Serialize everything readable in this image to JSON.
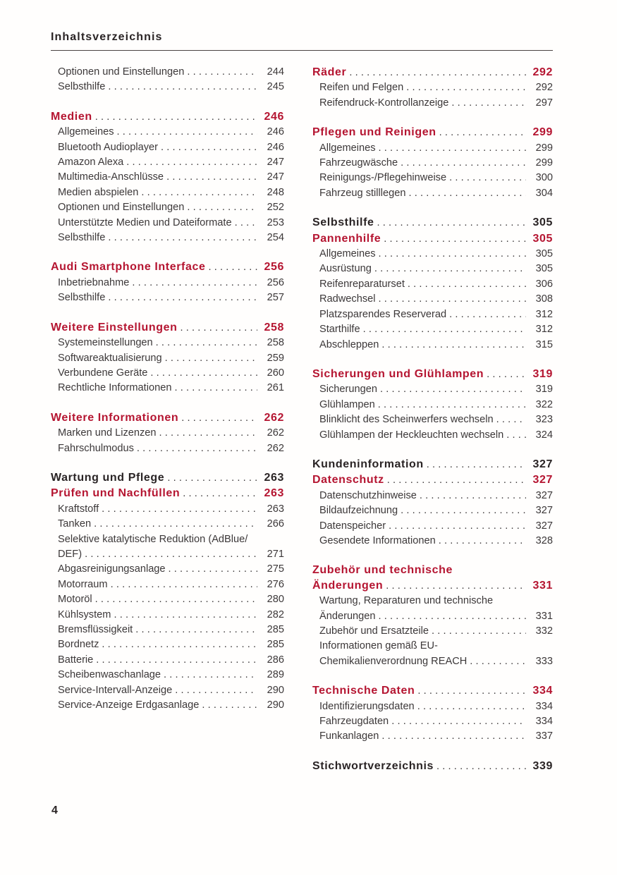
{
  "page": {
    "header_title": "Inhaltsverzeichnis",
    "page_number": "4"
  },
  "colors": {
    "accent_red": "#b51531",
    "heading_black": "#2a2425",
    "body_text": "#3c3839"
  },
  "toc": {
    "left_column": [
      {
        "rows": [
          {
            "style": "entry",
            "label": "Optionen und Einstellungen",
            "page": "244"
          },
          {
            "style": "entry",
            "label": "Selbsthilfe",
            "page": "245"
          }
        ]
      },
      {
        "rows": [
          {
            "style": "heading-red",
            "label": "Medien",
            "page": "246"
          },
          {
            "style": "entry",
            "label": "Allgemeines",
            "page": "246"
          },
          {
            "style": "entry",
            "label": "Bluetooth Audioplayer",
            "page": "246"
          },
          {
            "style": "entry",
            "label": "Amazon Alexa",
            "page": "247"
          },
          {
            "style": "entry",
            "label": "Multimedia-Anschlüsse",
            "page": "247"
          },
          {
            "style": "entry",
            "label": "Medien abspielen",
            "page": "248"
          },
          {
            "style": "entry",
            "label": "Optionen und Einstellungen",
            "page": "252"
          },
          {
            "style": "entry",
            "label": "Unterstützte Medien und Dateiformate",
            "page": "253"
          },
          {
            "style": "entry",
            "label": "Selbsthilfe",
            "page": "254"
          }
        ]
      },
      {
        "rows": [
          {
            "style": "heading-red",
            "label": "Audi Smartphone Interface",
            "page": "256"
          },
          {
            "style": "entry",
            "label": "Inbetriebnahme",
            "page": "256"
          },
          {
            "style": "entry",
            "label": "Selbsthilfe",
            "page": "257"
          }
        ]
      },
      {
        "rows": [
          {
            "style": "heading-red",
            "label": "Weitere Einstellungen",
            "page": "258"
          },
          {
            "style": "entry",
            "label": "Systemeinstellungen",
            "page": "258"
          },
          {
            "style": "entry",
            "label": "Softwareaktualisierung",
            "page": "259"
          },
          {
            "style": "entry",
            "label": "Verbundene Geräte",
            "page": "260"
          },
          {
            "style": "entry",
            "label": "Rechtliche Informationen",
            "page": "261"
          }
        ]
      },
      {
        "rows": [
          {
            "style": "heading-red",
            "label": "Weitere Informationen",
            "page": "262"
          },
          {
            "style": "entry",
            "label": "Marken und Lizenzen",
            "page": "262"
          },
          {
            "style": "entry",
            "label": "Fahrschulmodus",
            "page": "262"
          }
        ]
      },
      {
        "rows": [
          {
            "style": "heading-black",
            "label": "Wartung und Pflege",
            "page": "263"
          },
          {
            "style": "heading-red",
            "label": "Prüfen und Nachfüllen",
            "page": "263"
          },
          {
            "style": "entry",
            "label": "Kraftstoff",
            "page": "263"
          },
          {
            "style": "entry",
            "label": "Tanken",
            "page": "266"
          },
          {
            "style": "entry",
            "label": "Selektive katalytische Reduktion (AdBlue/",
            "page": null
          },
          {
            "style": "entry",
            "label": "DEF)",
            "page": "271"
          },
          {
            "style": "entry",
            "label": "Abgasreinigungsanlage",
            "page": "275"
          },
          {
            "style": "entry",
            "label": "Motorraum",
            "page": "276"
          },
          {
            "style": "entry",
            "label": "Motoröl",
            "page": "280"
          },
          {
            "style": "entry",
            "label": "Kühlsystem",
            "page": "282"
          },
          {
            "style": "entry",
            "label": "Bremsflüssigkeit",
            "page": "285"
          },
          {
            "style": "entry",
            "label": "Bordnetz",
            "page": "285"
          },
          {
            "style": "entry",
            "label": "Batterie",
            "page": "286"
          },
          {
            "style": "entry",
            "label": "Scheibenwaschanlage",
            "page": "289"
          },
          {
            "style": "entry",
            "label": "Service-Intervall-Anzeige",
            "page": "290"
          },
          {
            "style": "entry",
            "label": "Service-Anzeige Erdgasanlage",
            "page": "290"
          }
        ]
      }
    ],
    "right_column": [
      {
        "rows": [
          {
            "style": "heading-red",
            "label": "Räder",
            "page": "292"
          },
          {
            "style": "entry",
            "label": "Reifen und Felgen",
            "page": "292"
          },
          {
            "style": "entry",
            "label": "Reifendruck-Kontrollanzeige",
            "page": "297"
          }
        ]
      },
      {
        "rows": [
          {
            "style": "heading-red",
            "label": "Pflegen und Reinigen",
            "page": "299"
          },
          {
            "style": "entry",
            "label": "Allgemeines",
            "page": "299"
          },
          {
            "style": "entry",
            "label": "Fahrzeugwäsche",
            "page": "299"
          },
          {
            "style": "entry",
            "label": "Reinigungs-/Pflegehinweise",
            "page": "300"
          },
          {
            "style": "entry",
            "label": "Fahrzeug stilllegen",
            "page": "304"
          }
        ]
      },
      {
        "rows": [
          {
            "style": "heading-black",
            "label": "Selbsthilfe",
            "page": "305"
          },
          {
            "style": "heading-red",
            "label": "Pannenhilfe",
            "page": "305"
          },
          {
            "style": "entry",
            "label": "Allgemeines",
            "page": "305"
          },
          {
            "style": "entry",
            "label": "Ausrüstung",
            "page": "305"
          },
          {
            "style": "entry",
            "label": "Reifenreparaturset",
            "page": "306"
          },
          {
            "style": "entry",
            "label": "Radwechsel",
            "page": "308"
          },
          {
            "style": "entry",
            "label": "Platzsparendes Reserverad",
            "page": "312"
          },
          {
            "style": "entry",
            "label": "Starthilfe",
            "page": "312"
          },
          {
            "style": "entry",
            "label": "Abschleppen",
            "page": "315"
          }
        ]
      },
      {
        "rows": [
          {
            "style": "heading-red",
            "label": "Sicherungen und Glühlampen",
            "page": "319"
          },
          {
            "style": "entry",
            "label": "Sicherungen",
            "page": "319"
          },
          {
            "style": "entry",
            "label": "Glühlampen",
            "page": "322"
          },
          {
            "style": "entry",
            "label": "Blinklicht des Scheinwerfers wechseln",
            "page": "323"
          },
          {
            "style": "entry",
            "label": "Glühlampen der Heckleuchten wechseln",
            "page": "324"
          }
        ]
      },
      {
        "rows": [
          {
            "style": "heading-black",
            "label": "Kundeninformation",
            "page": "327"
          },
          {
            "style": "heading-red",
            "label": "Datenschutz",
            "page": "327"
          },
          {
            "style": "entry",
            "label": "Datenschutzhinweise",
            "page": "327"
          },
          {
            "style": "entry",
            "label": "Bildaufzeichnung",
            "page": "327"
          },
          {
            "style": "entry",
            "label": "Datenspeicher",
            "page": "327"
          },
          {
            "style": "entry",
            "label": "Gesendete Informationen",
            "page": "328"
          }
        ]
      },
      {
        "rows": [
          {
            "style": "heading-red",
            "label": "Zubehör und technische",
            "page": null
          },
          {
            "style": "heading-red",
            "label": "Änderungen",
            "page": "331"
          },
          {
            "style": "entry",
            "label": "Wartung, Reparaturen und technische",
            "page": null
          },
          {
            "style": "entry",
            "label": "Änderungen",
            "page": "331"
          },
          {
            "style": "entry",
            "label": "Zubehör und Ersatzteile",
            "page": "332"
          },
          {
            "style": "entry",
            "label": "Informationen gemäß EU-",
            "page": null
          },
          {
            "style": "entry",
            "label": "Chemikalienverordnung REACH",
            "page": "333"
          }
        ]
      },
      {
        "rows": [
          {
            "style": "heading-red",
            "label": "Technische Daten",
            "page": "334"
          },
          {
            "style": "entry",
            "label": "Identifizierungsdaten",
            "page": "334"
          },
          {
            "style": "entry",
            "label": "Fahrzeugdaten",
            "page": "334"
          },
          {
            "style": "entry",
            "label": "Funkanlagen",
            "page": "337"
          }
        ]
      },
      {
        "rows": [
          {
            "style": "heading-black",
            "label": "Stichwortverzeichnis",
            "page": "339"
          }
        ]
      }
    ]
  }
}
